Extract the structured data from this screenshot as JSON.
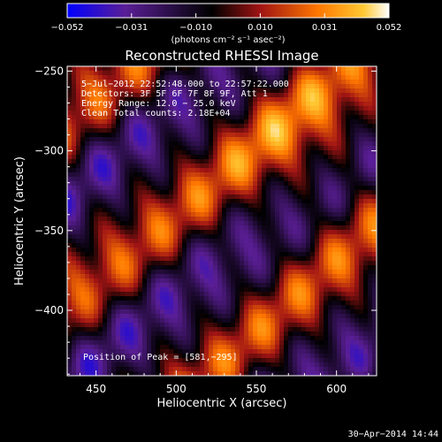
{
  "chart_data": {
    "type": "heatmap",
    "title": "Reconstructed RHESSI Image",
    "xlabel": "Heliocentric X (arcsec)",
    "ylabel": "Heliocentric Y (arcsec)",
    "xlim": [
      432,
      625
    ],
    "ylim": [
      -441,
      -247
    ],
    "x_ticks": [
      "450",
      "500",
      "550",
      "600"
    ],
    "y_ticks": [
      "−250",
      "−300",
      "−350",
      "−400"
    ],
    "x_tick_values": [
      450,
      500,
      550,
      600
    ],
    "y_tick_values": [
      -250,
      -300,
      -350,
      -400
    ],
    "colorbar": {
      "range": [
        -0.052,
        0.052
      ],
      "tick_labels": [
        "−0.052",
        "−0.031",
        "−0.010",
        "0.010",
        "0.031",
        "0.052"
      ],
      "unit_label": "(photons cm⁻² s⁻¹ asec⁻²)"
    },
    "annotations": [
      "5−Jul−2012 22:52:48.000 to 22:57:22.000",
      "Detectors: 3F 5F 6F 7F 8F 9F, Att 1",
      "Energy Range: 12.0 − 25.0 keV",
      "Clean    Total counts: 2.18E+04"
    ],
    "peak_label": "Position of Peak = [581,−295]",
    "peak": {
      "x": 581,
      "y": -295
    },
    "footer_date": "30−Apr−2014 14:44",
    "colormap_hex": [
      "#0000ff",
      "#5a1e96",
      "#000000",
      "#a01414",
      "#ff7800",
      "#ffc832",
      "#ffffff"
    ]
  }
}
